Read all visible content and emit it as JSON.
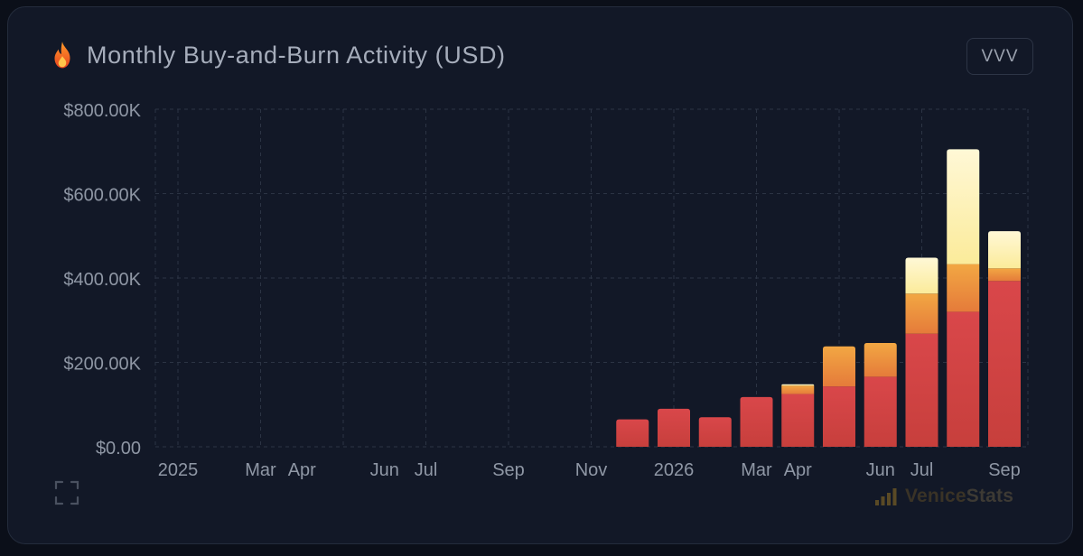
{
  "header": {
    "title": "Monthly Buy-and-Burn Activity (USD)",
    "token_button": "VVV",
    "icon": "fire-icon"
  },
  "footer": {
    "expand_icon": "expand-icon",
    "brand_first": "Venice",
    "brand_second": "Stats",
    "brand_icon": "bar-signal-icon"
  },
  "colors": {
    "background": "#121827",
    "grid": "#2c3444",
    "axis_text": "#8f97a5",
    "bottom_segment": "#c73f3c",
    "middle_segment": "#f2a743",
    "top_segment": "#fbeb9a"
  },
  "chart_data": {
    "type": "bar",
    "stacked": true,
    "x_axis": "date",
    "x_ticks": [
      {
        "label": "2025",
        "date": "2025-01-01"
      },
      {
        "label": "Mar",
        "date": "2025-03-01"
      },
      {
        "label": "Apr",
        "date": "2025-04-01"
      },
      {
        "label": "Jun",
        "date": "2025-06-01"
      },
      {
        "label": "Jul",
        "date": "2025-07-01"
      },
      {
        "label": "Sep",
        "date": "2025-09-01"
      },
      {
        "label": "Nov",
        "date": "2025-11-01"
      },
      {
        "label": "2026",
        "date": "2026-01-01"
      },
      {
        "label": "Mar",
        "date": "2026-03-01"
      },
      {
        "label": "Apr",
        "date": "2026-04-01"
      },
      {
        "label": "Jun",
        "date": "2026-06-01"
      },
      {
        "label": "Jul",
        "date": "2026-07-01"
      },
      {
        "label": "Sep",
        "date": "2026-09-01"
      }
    ],
    "y_ticks": [
      "$0.00",
      "$200.00K",
      "$400.00K",
      "$600.00K",
      "$800.00K"
    ],
    "ylim": [
      0,
      800000
    ],
    "grid": true,
    "categories": [
      "2025-12",
      "2026-01",
      "2026-02",
      "2026-03",
      "2026-04",
      "2026-05",
      "2026-06",
      "2026-07",
      "2026-08",
      "2026-09"
    ],
    "series": [
      {
        "values": [
          65000,
          90000,
          70000,
          118000,
          125000,
          143000,
          166000,
          268000,
          320000,
          393000
        ]
      },
      {
        "values": [
          0,
          0,
          0,
          0,
          20000,
          95000,
          80000,
          95000,
          113000,
          30000
        ]
      },
      {
        "values": [
          0,
          0,
          0,
          0,
          3000,
          0,
          0,
          85000,
          272000,
          88000
        ]
      }
    ]
  }
}
